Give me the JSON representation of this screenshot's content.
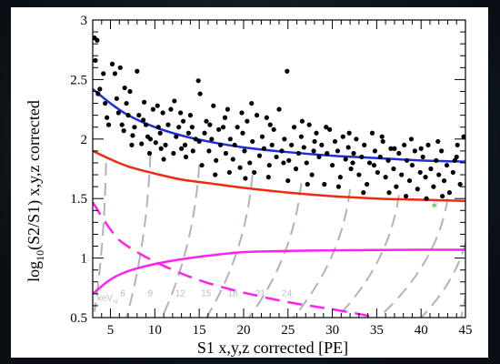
{
  "chart_data": {
    "type": "scatter",
    "title": "",
    "xlabel": "S1 x,y,z corrected [PE]",
    "ylabel": {
      "prefix": "log",
      "sub": "10",
      "rest": "(S2/S1) x,y,z corrected"
    },
    "xlim": [
      3,
      45
    ],
    "ylim": [
      0.5,
      3
    ],
    "x_ticks": [
      5,
      10,
      15,
      20,
      25,
      30,
      35,
      40,
      45
    ],
    "y_ticks": [
      0.5,
      1,
      1.5,
      2,
      2.5,
      3
    ],
    "legend": "none",
    "grid": false,
    "colors": {
      "points": "#000000",
      "er_band": "#1f2fd6",
      "nr_band": "#ee2a10",
      "magenta": "#ff22ee",
      "contours": "#aeb4bd",
      "outlier": "#22aa22"
    },
    "series": [
      {
        "marker": "dot",
        "points": [
          [
            3.2,
            2.85
          ],
          [
            3.5,
            2.83
          ],
          [
            3.3,
            2.66
          ],
          [
            3.8,
            2.42
          ],
          [
            3.6,
            2.38
          ],
          [
            4.2,
            2.55
          ],
          [
            4.4,
            2.3
          ],
          [
            4.6,
            2.18
          ],
          [
            4.8,
            2.12
          ],
          [
            5.2,
            2.63
          ],
          [
            5.5,
            2.55
          ],
          [
            5.7,
            2.34
          ],
          [
            5.9,
            2.22
          ],
          [
            6.1,
            2.6
          ],
          [
            6.3,
            2.12
          ],
          [
            6.5,
            2.07
          ],
          [
            6.8,
            2.3
          ],
          [
            7.0,
            2.2
          ],
          [
            7.2,
            2.4
          ],
          [
            7.5,
            2.03
          ],
          [
            7.7,
            2.1
          ],
          [
            8.0,
            2.57
          ],
          [
            8.2,
            2.2
          ],
          [
            8.5,
            1.96
          ],
          [
            8.7,
            2.16
          ],
          [
            9.0,
            2.12
          ],
          [
            9.2,
            2.02
          ],
          [
            9.5,
            2.0
          ],
          [
            9.8,
            2.25
          ],
          [
            10.1,
            1.97
          ],
          [
            10.4,
            2.1
          ],
          [
            10.6,
            2.05
          ],
          [
            10.9,
            2.22
          ],
          [
            11.2,
            1.95
          ],
          [
            11.5,
            2.12
          ],
          [
            11.8,
            2.25
          ],
          [
            12.1,
            1.88
          ],
          [
            12.4,
            2.02
          ],
          [
            12.7,
            2.1
          ],
          [
            13.0,
            1.92
          ],
          [
            13.2,
            2.15
          ],
          [
            13.5,
            1.85
          ],
          [
            13.8,
            2.05
          ],
          [
            14.0,
            2.2
          ],
          [
            14.3,
            1.9
          ],
          [
            14.6,
            2.0
          ],
          [
            14.9,
            2.49
          ],
          [
            15.1,
            2.38
          ],
          [
            15.3,
            1.78
          ],
          [
            15.6,
            2.05
          ],
          [
            15.8,
            2.15
          ],
          [
            16.1,
            1.9
          ],
          [
            16.4,
            2.0
          ],
          [
            16.6,
            2.28
          ],
          [
            16.9,
            1.82
          ],
          [
            17.2,
            2.08
          ],
          [
            17.4,
            1.95
          ],
          [
            17.7,
            2.1
          ],
          [
            18.0,
            1.88
          ],
          [
            18.2,
            2.25
          ],
          [
            18.5,
            2.0
          ],
          [
            18.8,
            1.83
          ],
          [
            19.0,
            1.95
          ],
          [
            19.3,
            2.1
          ],
          [
            19.6,
            1.76
          ],
          [
            19.9,
            2.05
          ],
          [
            20.1,
            1.9
          ],
          [
            20.4,
            2.15
          ],
          [
            20.7,
            1.8
          ],
          [
            21.0,
            1.98
          ],
          [
            21.2,
            1.72
          ],
          [
            21.5,
            2.2
          ],
          [
            21.8,
            1.86
          ],
          [
            22.1,
            2.02
          ],
          [
            22.3,
            1.92
          ],
          [
            22.6,
            2.18
          ],
          [
            22.9,
            1.78
          ],
          [
            23.2,
            1.95
          ],
          [
            23.4,
            2.08
          ],
          [
            23.7,
            1.85
          ],
          [
            24.0,
            2.25
          ],
          [
            24.3,
            1.9
          ],
          [
            24.6,
            2.0
          ],
          [
            24.9,
            2.57
          ],
          [
            25.1,
            1.82
          ],
          [
            25.4,
            1.95
          ],
          [
            25.7,
            2.1
          ],
          [
            25.9,
            1.75
          ],
          [
            26.2,
            1.88
          ],
          [
            26.5,
            2.02
          ],
          [
            26.8,
            1.93
          ],
          [
            27.1,
            1.8
          ],
          [
            27.4,
            2.12
          ],
          [
            27.7,
            1.7
          ],
          [
            27.9,
            1.9
          ],
          [
            28.2,
            2.05
          ],
          [
            28.5,
            1.85
          ],
          [
            28.8,
            1.95
          ],
          [
            29.1,
            1.62
          ],
          [
            29.4,
            1.88
          ],
          [
            29.7,
            2.08
          ],
          [
            30.0,
            1.78
          ],
          [
            30.3,
            1.98
          ],
          [
            30.6,
            1.9
          ],
          [
            30.9,
            1.68
          ],
          [
            31.2,
            2.02
          ],
          [
            31.5,
            1.83
          ],
          [
            31.8,
            1.93
          ],
          [
            32.1,
            1.75
          ],
          [
            32.4,
            1.88
          ],
          [
            32.7,
            2.0
          ],
          [
            33.0,
            1.7
          ],
          [
            33.3,
            1.85
          ],
          [
            33.6,
            1.95
          ],
          [
            33.9,
            1.62
          ],
          [
            34.2,
            1.8
          ],
          [
            34.5,
            2.05
          ],
          [
            34.8,
            1.9
          ],
          [
            35.1,
            1.72
          ],
          [
            35.4,
            1.85
          ],
          [
            35.7,
            1.98
          ],
          [
            36.0,
            1.68
          ],
          [
            36.3,
            1.82
          ],
          [
            36.6,
            1.92
          ],
          [
            36.9,
            1.75
          ],
          [
            37.2,
            1.6
          ],
          [
            37.5,
            1.88
          ],
          [
            37.8,
            1.7
          ],
          [
            38.1,
            1.95
          ],
          [
            38.4,
            1.82
          ],
          [
            38.7,
            1.65
          ],
          [
            39.0,
            1.78
          ],
          [
            39.3,
            1.9
          ],
          [
            39.6,
            1.58
          ],
          [
            39.9,
            1.72
          ],
          [
            40.2,
            1.85
          ],
          [
            40.5,
            1.68
          ],
          [
            40.8,
            1.95
          ],
          [
            41.1,
            1.75
          ],
          [
            41.4,
            1.6
          ],
          [
            41.7,
            1.82
          ],
          [
            42.0,
            1.7
          ],
          [
            42.3,
            1.9
          ],
          [
            42.6,
            1.65
          ],
          [
            42.9,
            1.78
          ],
          [
            43.2,
            1.55
          ],
          [
            43.6,
            1.72
          ],
          [
            44.0,
            1.85
          ],
          [
            44.4,
            1.62
          ],
          [
            44.8,
            2.02
          ],
          [
            6.6,
            2.43
          ],
          [
            8.8,
            2.31
          ],
          [
            10.3,
            2.28
          ],
          [
            12.9,
            2.22
          ],
          [
            14.2,
            2.1
          ],
          [
            17.9,
            2.18
          ],
          [
            19.8,
            2.22
          ],
          [
            23.0,
            2.12
          ],
          [
            26.6,
            2.15
          ],
          [
            29.3,
            2.1
          ],
          [
            31.9,
            2.05
          ],
          [
            35.6,
            2.02
          ],
          [
            38.9,
            2.0
          ],
          [
            41.9,
            1.98
          ],
          [
            44.1,
            1.95
          ],
          [
            9.4,
            1.88
          ],
          [
            11.0,
            1.83
          ],
          [
            13.4,
            1.95
          ],
          [
            16.8,
            1.7
          ],
          [
            18.4,
            1.72
          ],
          [
            20.2,
            1.67
          ],
          [
            22.8,
            1.68
          ],
          [
            25.0,
            1.65
          ],
          [
            27.2,
            1.62
          ],
          [
            30.7,
            1.6
          ],
          [
            33.5,
            1.55
          ],
          [
            36.4,
            1.55
          ],
          [
            38.3,
            1.52
          ],
          [
            40.6,
            1.5
          ],
          [
            42.4,
            1.52
          ],
          [
            7.4,
            1.95
          ],
          [
            10.7,
            1.92
          ],
          [
            12.2,
            2.32
          ],
          [
            15.0,
            1.98
          ],
          [
            16.2,
            2.12
          ],
          [
            20.9,
            2.3
          ],
          [
            24.5,
            1.8
          ],
          [
            28.0,
            1.98
          ],
          [
            32.3,
            1.8
          ],
          [
            34.7,
            1.78
          ],
          [
            37.0,
            1.92
          ],
          [
            40.0,
            1.92
          ],
          [
            43.8,
            1.82
          ]
        ]
      }
    ],
    "bands": [
      {
        "color": "blue",
        "points": [
          [
            3,
            2.42
          ],
          [
            5,
            2.3
          ],
          [
            7,
            2.2
          ],
          [
            10,
            2.1
          ],
          [
            13,
            2.03
          ],
          [
            16,
            1.98
          ],
          [
            20,
            1.93
          ],
          [
            25,
            1.89
          ],
          [
            30,
            1.86
          ],
          [
            35,
            1.84
          ],
          [
            40,
            1.82
          ],
          [
            45,
            1.81
          ]
        ]
      },
      {
        "color": "red",
        "points": [
          [
            3,
            1.9
          ],
          [
            5,
            1.83
          ],
          [
            7,
            1.77
          ],
          [
            10,
            1.71
          ],
          [
            13,
            1.66
          ],
          [
            16,
            1.63
          ],
          [
            20,
            1.59
          ],
          [
            25,
            1.55
          ],
          [
            30,
            1.52
          ],
          [
            35,
            1.5
          ],
          [
            40,
            1.49
          ],
          [
            45,
            1.48
          ]
        ]
      },
      {
        "color": "magenta-solid",
        "points": [
          [
            3,
            0.7
          ],
          [
            5,
            0.82
          ],
          [
            7,
            0.89
          ],
          [
            10,
            0.95
          ],
          [
            13,
            0.99
          ],
          [
            16,
            1.02
          ],
          [
            20,
            1.05
          ],
          [
            25,
            1.06
          ],
          [
            30,
            1.065
          ],
          [
            40,
            1.07
          ],
          [
            45,
            1.07
          ]
        ]
      },
      {
        "color": "magenta-dashed",
        "points": [
          [
            3,
            1.47
          ],
          [
            4,
            1.35
          ],
          [
            5,
            1.24
          ],
          [
            6,
            1.15
          ],
          [
            8,
            1.05
          ],
          [
            10,
            0.97
          ],
          [
            13,
            0.87
          ],
          [
            16,
            0.79
          ],
          [
            20,
            0.71
          ],
          [
            25,
            0.63
          ],
          [
            30,
            0.57
          ],
          [
            33,
            0.53
          ],
          [
            35,
            0.5
          ]
        ]
      }
    ],
    "outlier": {
      "x": 41.5,
      "y": 1.43
    },
    "kev_contours": [
      {
        "label": "keV",
        "sub": "nr",
        "top": [
          4.5,
          1.8
        ],
        "bottom": [
          3.2,
          0.55
        ],
        "label_at": [
          3.5,
          0.64
        ]
      },
      {
        "label": "6",
        "top": [
          9.5,
          1.87
        ],
        "bottom": [
          6.8,
          0.5
        ],
        "label_at": [
          6.1,
          0.68
        ]
      },
      {
        "label": "9",
        "top": [
          15.0,
          1.78
        ],
        "bottom": [
          10.8,
          0.5
        ],
        "label_at": [
          9.2,
          0.68
        ]
      },
      {
        "label": "12",
        "top": [
          21.0,
          1.7
        ],
        "bottom": [
          15.8,
          0.5
        ],
        "label_at": [
          12.3,
          0.68
        ]
      },
      {
        "label": "15",
        "top": [
          26.5,
          1.63
        ],
        "bottom": [
          20.6,
          0.5
        ],
        "label_at": [
          15.2,
          0.68
        ]
      },
      {
        "label": "18",
        "top": [
          32.0,
          1.58
        ],
        "bottom": [
          25.6,
          0.5
        ],
        "label_at": [
          18.2,
          0.68
        ]
      },
      {
        "label": "21",
        "top": [
          37.5,
          1.53
        ],
        "bottom": [
          30.5,
          0.5
        ],
        "label_at": [
          21.3,
          0.68
        ]
      },
      {
        "label": "24",
        "top": [
          43.0,
          1.5
        ],
        "bottom": [
          35.2,
          0.5
        ],
        "label_at": [
          24.3,
          0.68
        ]
      },
      {
        "label": "",
        "top": [
          45.5,
          1.3
        ],
        "bottom": [
          40.0,
          0.5
        ]
      },
      {
        "label": "",
        "top": [
          45.5,
          1.05
        ],
        "bottom": [
          44.5,
          0.5
        ]
      }
    ]
  }
}
